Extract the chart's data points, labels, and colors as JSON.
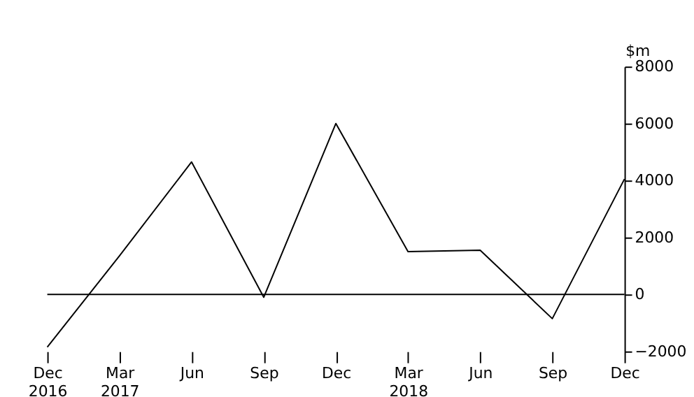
{
  "chart_data": {
    "type": "line",
    "ylabel": "$m",
    "categories": [
      "Dec 2016",
      "Mar 2017",
      "Jun",
      "Sep",
      "Dec",
      "Mar 2018",
      "Jun",
      "Sep",
      "Dec"
    ],
    "series": [
      {
        "color": "#000000",
        "values": [
          -1850,
          1350,
          4650,
          -100,
          6000,
          1500,
          1550,
          -850,
          4050
        ]
      }
    ],
    "ylim": [
      -2000,
      8000
    ],
    "yticks": [
      -2000,
      0,
      2000,
      4000,
      6000,
      8000
    ],
    "ref_lines": [
      {
        "axis": "y",
        "value": 0,
        "color": "#000000"
      }
    ],
    "grid": false,
    "marker": "none",
    "line_style": "solid"
  }
}
